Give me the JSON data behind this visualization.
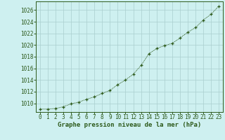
{
  "x": [
    0,
    1,
    2,
    3,
    4,
    5,
    6,
    7,
    8,
    9,
    10,
    11,
    12,
    13,
    14,
    15,
    16,
    17,
    18,
    19,
    20,
    21,
    22,
    23
  ],
  "y": [
    1009.0,
    1009.0,
    1009.1,
    1009.4,
    1009.9,
    1010.2,
    1010.7,
    1011.1,
    1011.7,
    1012.2,
    1013.2,
    1014.0,
    1015.0,
    1016.5,
    1018.5,
    1019.4,
    1019.9,
    1020.3,
    1021.2,
    1022.2,
    1023.0,
    1024.3,
    1025.3,
    1026.7
  ],
  "line_color": "#2d5a1b",
  "marker": "+",
  "bg_color": "#cef0f0",
  "grid_color": "#aacece",
  "ylabel_ticks": [
    1010,
    1012,
    1014,
    1016,
    1018,
    1020,
    1022,
    1024,
    1026
  ],
  "xlabel": "Graphe pression niveau de la mer (hPa)",
  "xlabel_color": "#2d5a1b",
  "xlim": [
    -0.5,
    23.5
  ],
  "ylim": [
    1008.5,
    1027.5
  ],
  "tick_color": "#2d5a1b",
  "axis_color": "#2d5a1b",
  "tick_fontsize": 5.5,
  "xlabel_fontsize": 6.5
}
